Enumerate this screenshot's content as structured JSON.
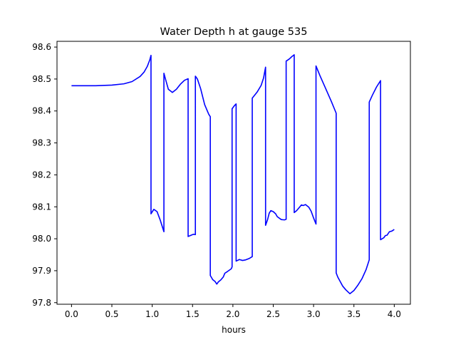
{
  "chart_data": {
    "type": "line",
    "title": "Water Depth h at gauge 535",
    "xlabel": "hours",
    "ylabel": "",
    "xlim": [
      -0.18,
      4.2
    ],
    "ylim": [
      97.795,
      98.618
    ],
    "xticks": [
      0.0,
      0.5,
      1.0,
      1.5,
      2.0,
      2.5,
      3.0,
      3.5,
      4.0
    ],
    "xtick_labels": [
      "0.0",
      "0.5",
      "1.0",
      "1.5",
      "2.0",
      "2.5",
      "3.0",
      "3.5",
      "4.0"
    ],
    "yticks": [
      97.8,
      97.9,
      98.0,
      98.1,
      98.2,
      98.3,
      98.4,
      98.5,
      98.6
    ],
    "ytick_labels": [
      "97.8",
      "97.9",
      "98.0",
      "98.1",
      "98.2",
      "98.3",
      "98.4",
      "98.5",
      "98.6"
    ],
    "grid": false,
    "legend": "none",
    "series": [
      {
        "color": "#0000ff",
        "x": [
          0.0,
          0.3,
          0.5,
          0.65,
          0.75,
          0.85,
          0.9,
          0.94,
          0.97,
          0.985,
          0.985,
          1.02,
          1.06,
          1.1,
          1.145,
          1.145,
          1.17,
          1.2,
          1.25,
          1.3,
          1.35,
          1.4,
          1.445,
          1.445,
          1.49,
          1.51,
          1.535,
          1.535,
          1.56,
          1.6,
          1.65,
          1.7,
          1.72,
          1.72,
          1.75,
          1.78,
          1.8,
          1.82,
          1.85,
          1.88,
          1.9,
          1.93,
          1.98,
          1.99,
          1.99,
          2.02,
          2.04,
          2.04,
          2.08,
          2.12,
          2.16,
          2.2,
          2.24,
          2.24,
          2.3,
          2.35,
          2.38,
          2.405,
          2.405,
          2.43,
          2.45,
          2.47,
          2.5,
          2.53,
          2.55,
          2.6,
          2.64,
          2.66,
          2.66,
          2.7,
          2.73,
          2.76,
          2.76,
          2.79,
          2.83,
          2.85,
          2.87,
          2.9,
          2.94,
          2.97,
          3.0,
          3.03,
          3.03,
          3.08,
          3.15,
          3.22,
          3.28,
          3.28,
          3.3,
          3.33,
          3.36,
          3.4,
          3.45,
          3.5,
          3.55,
          3.6,
          3.65,
          3.69,
          3.69,
          3.73,
          3.78,
          3.83,
          3.83,
          3.87,
          3.89,
          3.91,
          3.94,
          3.97,
          4.0
        ],
        "y": [
          98.479,
          98.479,
          98.481,
          98.485,
          98.492,
          98.508,
          98.522,
          98.54,
          98.56,
          98.574,
          98.078,
          98.092,
          98.085,
          98.058,
          98.022,
          98.518,
          98.495,
          98.468,
          98.458,
          98.468,
          98.484,
          98.496,
          98.501,
          98.007,
          98.012,
          98.014,
          98.013,
          98.509,
          98.5,
          98.47,
          98.42,
          98.39,
          98.382,
          97.885,
          97.872,
          97.866,
          97.858,
          97.865,
          97.871,
          97.88,
          97.892,
          97.897,
          97.906,
          97.912,
          98.407,
          98.417,
          98.422,
          97.93,
          97.935,
          97.932,
          97.934,
          97.938,
          97.944,
          98.44,
          98.459,
          98.48,
          98.503,
          98.537,
          98.042,
          98.06,
          98.08,
          98.088,
          98.085,
          98.078,
          98.069,
          98.06,
          98.059,
          98.061,
          98.556,
          98.563,
          98.57,
          98.576,
          98.082,
          98.088,
          98.1,
          98.106,
          98.104,
          98.107,
          98.099,
          98.086,
          98.065,
          98.046,
          98.541,
          98.51,
          98.47,
          98.43,
          98.393,
          97.893,
          97.88,
          97.866,
          97.852,
          97.84,
          97.828,
          97.838,
          97.855,
          97.875,
          97.903,
          97.934,
          98.428,
          98.45,
          98.475,
          98.495,
          97.997,
          98.003,
          98.01,
          98.011,
          98.022,
          98.024,
          98.029
        ]
      }
    ]
  }
}
